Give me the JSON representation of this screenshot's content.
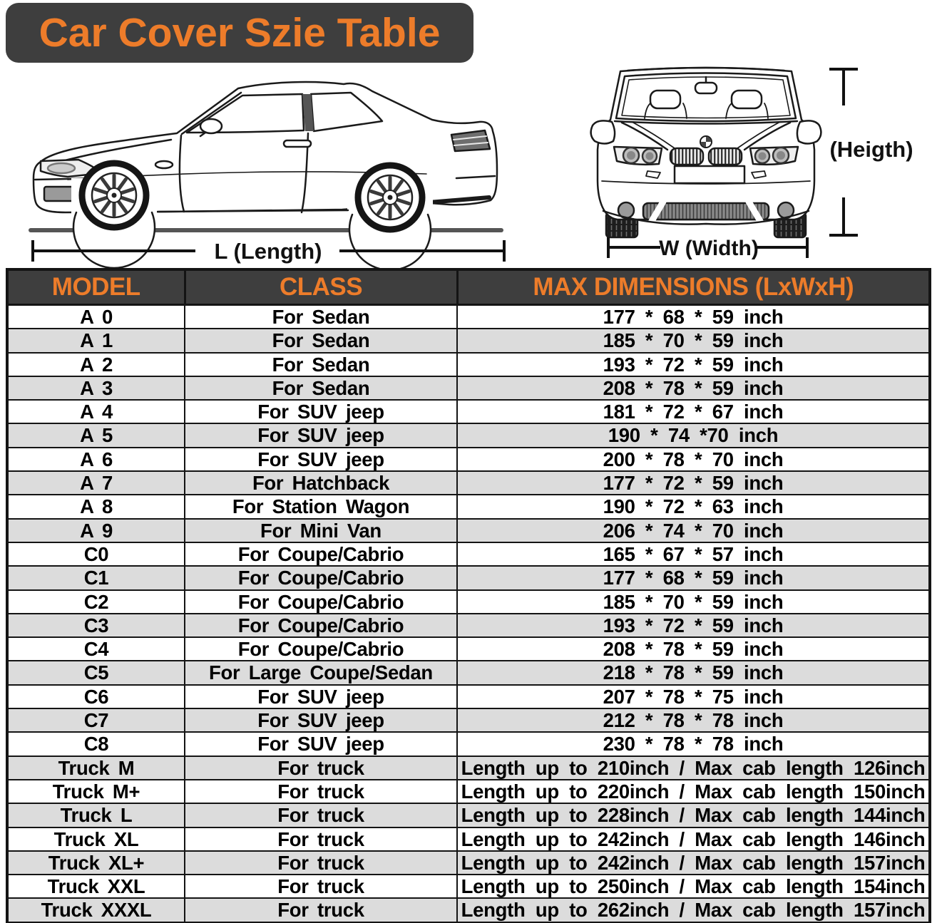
{
  "title": "Car Cover Szie Table",
  "diagram": {
    "length_label": "L (Length)",
    "width_label": "W (Width)",
    "height_label": "(Heigth)"
  },
  "table": {
    "headers": [
      "MODEL",
      "CLASS",
      "MAX DIMENSIONS (LxWxH)"
    ],
    "rows": [
      [
        "A 0",
        "For Sedan",
        "177 * 68 * 59 inch"
      ],
      [
        "A 1",
        "For Sedan",
        "185 * 70 * 59 inch"
      ],
      [
        "A 2",
        "For Sedan",
        "193 * 72 * 59 inch"
      ],
      [
        "A 3",
        "For Sedan",
        "208 * 78 * 59 inch"
      ],
      [
        "A 4",
        "For SUV jeep",
        "181 * 72 * 67 inch"
      ],
      [
        "A 5",
        "For SUV jeep",
        "190 * 74  *70 inch"
      ],
      [
        "A 6",
        "For SUV jeep",
        "200 * 78 * 70 inch"
      ],
      [
        "A 7",
        "For Hatchback",
        "177 * 72 * 59 inch"
      ],
      [
        "A 8",
        "For Station Wagon",
        "190 * 72 * 63 inch"
      ],
      [
        "A 9",
        "For Mini Van",
        "206 * 74 * 70 inch"
      ],
      [
        "C0",
        "For Coupe/Cabrio",
        "165 * 67 * 57 inch"
      ],
      [
        "C1",
        "For Coupe/Cabrio",
        "177 * 68 * 59 inch"
      ],
      [
        "C2",
        "For Coupe/Cabrio",
        "185 * 70 * 59 inch"
      ],
      [
        "C3",
        "For Coupe/Cabrio",
        "193 * 72 * 59 inch"
      ],
      [
        "C4",
        "For Coupe/Cabrio",
        "208 * 78 * 59 inch"
      ],
      [
        "C5",
        "For Large Coupe/Sedan",
        "218 * 78 * 59 inch"
      ],
      [
        "C6",
        "For SUV jeep",
        "207 * 78 * 75 inch"
      ],
      [
        "C7",
        "For SUV jeep",
        "212 * 78 * 78 inch"
      ],
      [
        "C8",
        "For SUV jeep",
        "230 * 78 * 78 inch"
      ],
      [
        "Truck M",
        "For truck",
        "Length up to 210inch / Max cab length 126inch"
      ],
      [
        "Truck M+",
        "For truck",
        "Length up to 220inch / Max cab length 150inch"
      ],
      [
        "Truck L",
        "For truck",
        "Length up to 228inch / Max cab length 144inch"
      ],
      [
        "Truck XL",
        "For truck",
        "Length up to 242inch / Max cab length 146inch"
      ],
      [
        "Truck XL+",
        "For truck",
        "Length up to 242inch / Max cab length 157inch"
      ],
      [
        "Truck XXL",
        "For truck",
        "Length up to 250inch / Max cab length 154inch"
      ],
      [
        "Truck XXXL",
        "For truck",
        "Length up to 262inch / Max cab length 157inch"
      ]
    ]
  },
  "colors": {
    "accent_orange": "#ED7C2A",
    "header_dark": "#3E3E3E",
    "row_alt_gray": "#DCDCDC",
    "grid_line": "#141414"
  }
}
